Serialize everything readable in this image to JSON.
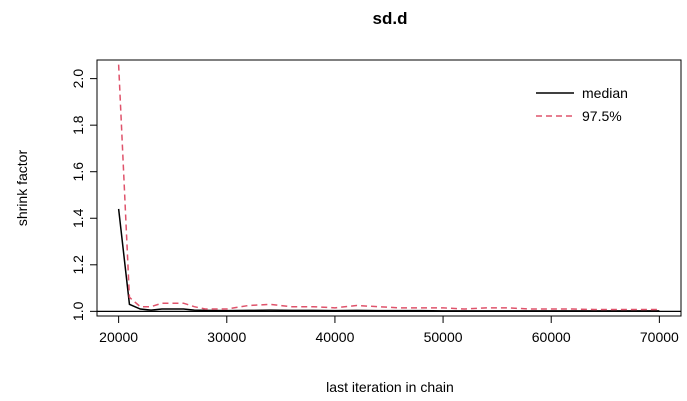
{
  "chart_data": {
    "type": "line",
    "title": "sd.d",
    "xlabel": "last iteration in chain",
    "ylabel": "shrink factor",
    "xlim": [
      18000,
      72000
    ],
    "ylim": [
      0.98,
      2.08
    ],
    "xticks": [
      20000,
      30000,
      40000,
      50000,
      60000,
      70000
    ],
    "yticks": [
      1.0,
      1.2,
      1.4,
      1.6,
      1.8,
      2.0
    ],
    "xtick_labels": [
      "20000",
      "30000",
      "40000",
      "50000",
      "60000",
      "70000"
    ],
    "ytick_labels": [
      "1.0",
      "1.2",
      "1.4",
      "1.6",
      "1.8",
      "2.0"
    ],
    "reference_line": 1.0,
    "legend_position": "top-right",
    "series": [
      {
        "name": "median",
        "color": "#000000",
        "dash": "solid",
        "x": [
          20000,
          21000,
          22000,
          23000,
          24000,
          25000,
          26000,
          27000,
          28000,
          30000,
          32000,
          34000,
          36000,
          38000,
          40000,
          42000,
          44000,
          46000,
          48000,
          50000,
          55000,
          60000,
          65000,
          70000
        ],
        "values": [
          1.44,
          1.03,
          1.01,
          1.005,
          1.01,
          1.01,
          1.01,
          1.005,
          1.004,
          1.003,
          1.004,
          1.005,
          1.004,
          1.004,
          1.003,
          1.004,
          1.003,
          1.003,
          1.003,
          1.002,
          1.002,
          1.002,
          1.002,
          1.002
        ]
      },
      {
        "name": "97.5%",
        "color": "#DF536B",
        "dash": "dashed",
        "x": [
          20000,
          21000,
          22000,
          23000,
          24000,
          25000,
          26000,
          27000,
          28000,
          30000,
          32000,
          34000,
          36000,
          38000,
          40000,
          42000,
          44000,
          46000,
          48000,
          50000,
          52000,
          54000,
          56000,
          58000,
          60000,
          62000,
          64000,
          66000,
          68000,
          70000
        ],
        "values": [
          2.06,
          1.06,
          1.02,
          1.02,
          1.035,
          1.035,
          1.035,
          1.02,
          1.01,
          1.01,
          1.025,
          1.03,
          1.02,
          1.02,
          1.015,
          1.025,
          1.02,
          1.015,
          1.015,
          1.015,
          1.01,
          1.015,
          1.015,
          1.01,
          1.01,
          1.01,
          1.008,
          1.008,
          1.008,
          1.008
        ]
      }
    ]
  }
}
